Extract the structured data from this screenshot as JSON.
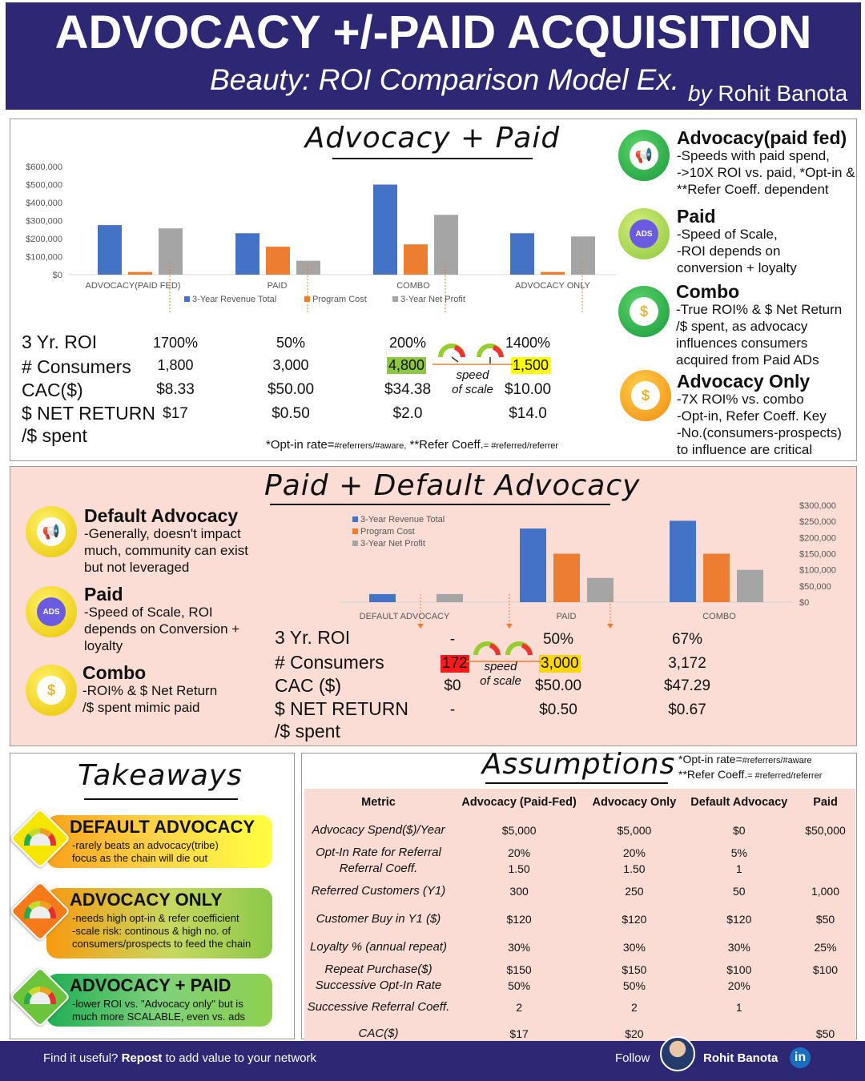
{
  "header": {
    "title": "ADVOCACY +/-PAID ACQUISITION",
    "subtitle": "Beauty: ROI Comparison Model Ex.",
    "by": "by",
    "author": "Rohit Banota"
  },
  "section1": {
    "title": "Advocacy + Paid",
    "metric_labels": [
      "3 Yr. ROI",
      "# Consumers",
      "CAC($)",
      "$ NET RETURN",
      "/$ spent"
    ],
    "columns": [
      {
        "roi": "1700%",
        "consumers": "1,800",
        "cac": "$8.33",
        "net": "$17"
      },
      {
        "roi": "50%",
        "consumers": "3,000",
        "cac": "$50.00",
        "net": "$0.50"
      },
      {
        "roi": "200%",
        "consumers": "4,800",
        "cac": "$34.38",
        "net": "$2.0"
      },
      {
        "roi": "1400%",
        "consumers": "1,500",
        "cac": "$10.00",
        "net": "$14.0"
      }
    ],
    "speed_label": "speed",
    "speed_label2": "of scale",
    "footnote_a": "*Opt-in rate=",
    "footnote_b": "#referrers/#aware,",
    "footnote_c": " **Refer Coeff.",
    "footnote_d": "= #referred/referrer",
    "side": [
      {
        "title": "Advocacy(paid fed)",
        "lines": [
          "-Speeds with paid spend,",
          "->10X ROI vs. paid, *Opt-in &",
          "**Refer Coeff. dependent"
        ],
        "icon": "megaphone-icon"
      },
      {
        "title": "Paid",
        "lines": [
          "-Speed of Scale,",
          "-ROI depends on",
          "conversion + loyalty"
        ],
        "icon": "ads-icon"
      },
      {
        "title": "Combo",
        "lines": [
          "-True ROI% & $ Net Return",
          "/$ spent, as advocacy",
          "influences consumers",
          "acquired from Paid ADs"
        ],
        "icon": "person-money-icon"
      },
      {
        "title": "Advocacy Only",
        "lines": [
          "-7X ROI% vs. combo",
          "-Opt-in, Refer Coeff. Key",
          "-No.(consumers-prospects)",
          "to influence are critical"
        ],
        "icon": "person-money-icon"
      }
    ]
  },
  "section2": {
    "title": "Paid + Default Advocacy",
    "metric_labels": [
      "3 Yr. ROI",
      "# Consumers",
      "CAC ($)",
      "$ NET RETURN",
      "/$ spent"
    ],
    "columns": [
      {
        "roi": "-",
        "consumers": "172",
        "cac": "$0",
        "net": "-"
      },
      {
        "roi": "50%",
        "consumers": "3,000",
        "cac": "$50.00",
        "net": "$0.50"
      },
      {
        "roi": "67%",
        "consumers": "3,172",
        "cac": "$47.29",
        "net": "$0.67"
      }
    ],
    "speed_label": "speed",
    "speed_label2": "of scale",
    "side": [
      {
        "title": "Default Advocacy",
        "lines": [
          "-Generally, doesn't impact",
          "much, community can exist",
          "but not leveraged"
        ]
      },
      {
        "title": "Paid",
        "lines": [
          "-Speed of Scale, ROI",
          "depends on Conversion +",
          "loyalty"
        ]
      },
      {
        "title": "Combo",
        "lines": [
          "-ROI% & $ Net Return",
          "/$ spent mimic paid"
        ]
      }
    ]
  },
  "takeaways": {
    "title": "Takeaways",
    "items": [
      {
        "title": "DEFAULT ADVOCACY",
        "lines": [
          "-rarely beats an advocacy(tribe)",
          "focus as the chain will die out"
        ]
      },
      {
        "title": "ADVOCACY ONLY",
        "lines": [
          "-needs high opt-in & refer coefficient",
          "-scale risk: continous & high no. of",
          "consumers/prospects to feed the chain"
        ]
      },
      {
        "title": "ADVOCACY + PAID",
        "lines": [
          "-lower ROI vs. \"Advocacy only\" but is",
          "much more SCALABLE, even vs. ads"
        ]
      }
    ]
  },
  "assumptions": {
    "title": "Assumptions",
    "note1a": "*Opt-in rate=",
    "note1b": "#referrers/#aware",
    "note2a": "**Refer Coeff.",
    "note2b": "= #referred/referrer",
    "headers": [
      "Metric",
      "Advocacy (Paid-Fed)",
      "Advocacy Only",
      "Default Advocacy",
      "Paid"
    ],
    "rows": [
      [
        "Advocacy Spend($)/Year",
        "$5,000",
        "$5,000",
        "$0",
        "$50,000"
      ],
      [
        "Opt-In Rate for Referral",
        "20%",
        "20%",
        "5%",
        ""
      ],
      [
        "Referral Coeff.",
        "1.50",
        "1.50",
        "1",
        ""
      ],
      [
        "Referred Customers (Y1)",
        "300",
        "250",
        "50",
        "1,000"
      ],
      [
        "Customer Buy in Y1 ($)",
        "$120",
        "$120",
        "$120",
        "$50"
      ],
      [
        "Loyalty % (annual repeat)",
        "30%",
        "30%",
        "30%",
        "25%"
      ],
      [
        "Repeat Purchase($)",
        "$150",
        "$150",
        "$100",
        "$100"
      ],
      [
        "Successive Opt-In Rate",
        "50%",
        "50%",
        "20%",
        ""
      ],
      [
        "Successive Referral Coeff.",
        "2",
        "2",
        "1",
        ""
      ],
      [
        "CAC($)",
        "$17",
        "$20",
        "",
        "$50"
      ]
    ]
  },
  "footer": {
    "left_a": "Find it useful? ",
    "left_b": "Repost",
    "left_c": " to add value to your network",
    "follow": "Follow",
    "name": "Rohit Banota",
    "linkedin": "in"
  },
  "chart_data": [
    {
      "type": "bar",
      "title": "Advocacy + Paid",
      "categories": [
        "ADVOCACY(PAID FED)",
        "PAID",
        "COMBO",
        "ADVOCACY ONLY"
      ],
      "series": [
        {
          "name": "3-Year Revenue Total",
          "color": "#4472c4",
          "values": [
            275000,
            230000,
            500000,
            230000
          ]
        },
        {
          "name": "Program Cost",
          "color": "#ed7d31",
          "values": [
            15000,
            155000,
            168000,
            15000
          ]
        },
        {
          "name": "3-Year Net Profit",
          "color": "#a5a5a5",
          "values": [
            257000,
            77000,
            332000,
            212000
          ]
        }
      ],
      "ylim": [
        0,
        600000
      ],
      "yticks": [
        "$0",
        "$100,000",
        "$200,000",
        "$300,000",
        "$400,000",
        "$500,000",
        "$600,000"
      ],
      "legend": "bottom"
    },
    {
      "type": "bar",
      "title": "Paid + Default Advocacy",
      "categories": [
        "DEFAULT ADVOCACY",
        "PAID",
        "COMBO"
      ],
      "series": [
        {
          "name": "3-Year Revenue Total",
          "color": "#4472c4",
          "values": [
            25000,
            228000,
            252000
          ]
        },
        {
          "name": "Program Cost",
          "color": "#ed7d31",
          "values": [
            0,
            150000,
            150000
          ]
        },
        {
          "name": "3-Year Net Profit",
          "color": "#a5a5a5",
          "values": [
            25000,
            75000,
            100000
          ]
        }
      ],
      "ylim": [
        0,
        300000
      ],
      "yticks": [
        "$0",
        "$50,000",
        "$100,000",
        "$150,000",
        "$200,000",
        "$250,000",
        "$300,000"
      ],
      "legend": "bottom"
    }
  ]
}
